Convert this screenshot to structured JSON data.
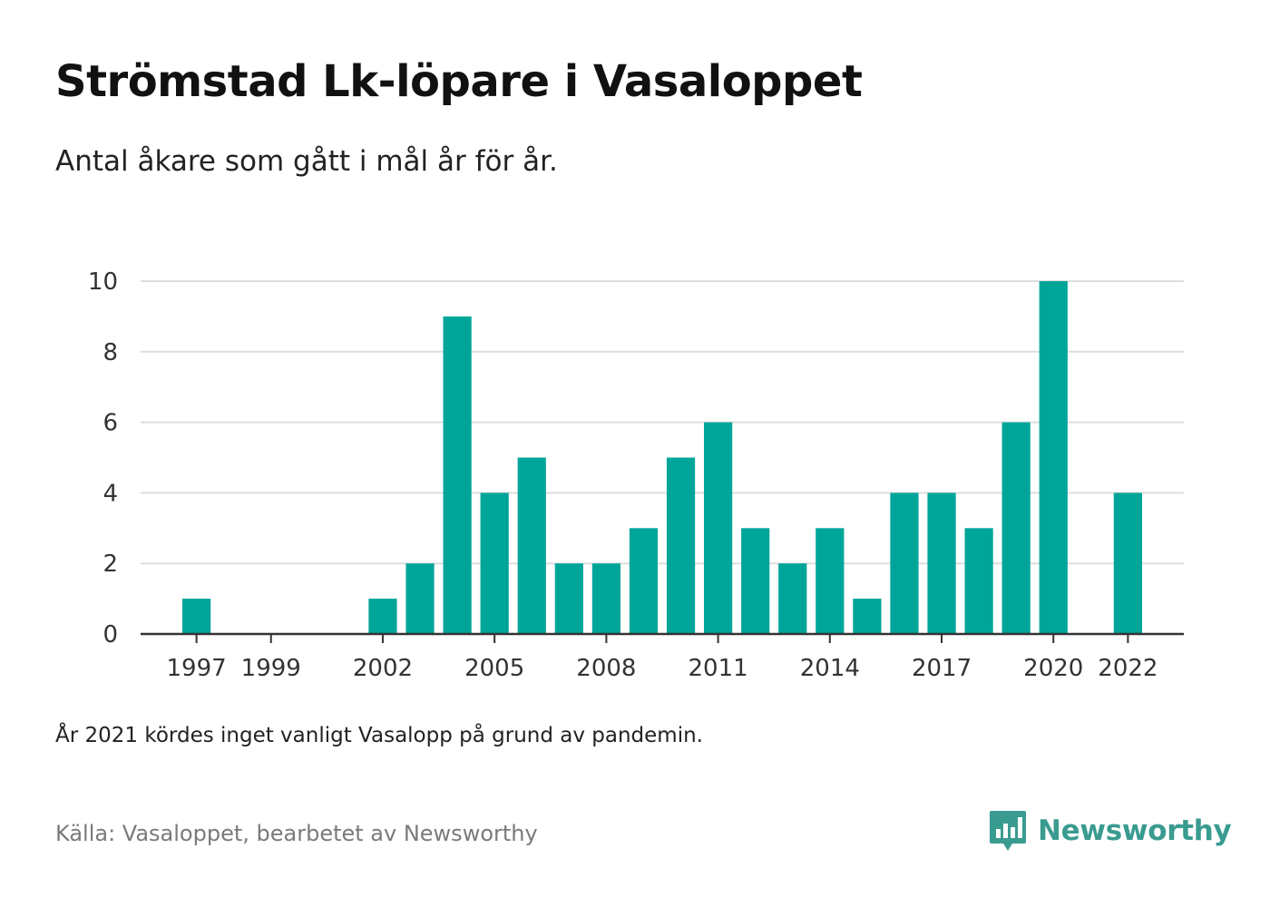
{
  "header": {
    "title": "Strömstad Lk-löpare i Vasaloppet",
    "subtitle": "Antal åkare som gått i mål år för år."
  },
  "footer": {
    "note": "År 2021 kördes inget vanligt Vasalopp på grund av pandemin.",
    "source": "Källa: Vasaloppet, bearbetet av Newsworthy",
    "logo_text": "Newsworthy"
  },
  "colors": {
    "bar": "#00a59a",
    "grid": "#dddddd",
    "axis": "#333333",
    "logo": "#3a9b90"
  },
  "icons": {
    "logo": "bar-chart-speech-bubble-icon"
  },
  "chart_data": {
    "type": "bar",
    "title": "Strömstad Lk-löpare i Vasaloppet",
    "subtitle": "Antal åkare som gått i mål år för år.",
    "xlabel": "",
    "ylabel": "",
    "categories": [
      "1996",
      "1997",
      "1998",
      "1999",
      "2000",
      "2001",
      "2002",
      "2003",
      "2004",
      "2005",
      "2006",
      "2007",
      "2008",
      "2009",
      "2010",
      "2011",
      "2012",
      "2013",
      "2014",
      "2015",
      "2016",
      "2017",
      "2018",
      "2019",
      "2020",
      "2021",
      "2022",
      "2023"
    ],
    "values": [
      null,
      1,
      0,
      0,
      0,
      0,
      1,
      2,
      9,
      4,
      5,
      2,
      2,
      3,
      5,
      6,
      3,
      2,
      3,
      1,
      4,
      4,
      3,
      6,
      10,
      null,
      4,
      null
    ],
    "x_tick_labels": [
      "1997",
      "1999",
      "2002",
      "2005",
      "2008",
      "2011",
      "2014",
      "2017",
      "2020",
      "2022"
    ],
    "y_ticks": [
      0,
      2,
      4,
      6,
      8,
      10
    ],
    "ylim": [
      0,
      10
    ],
    "grid": true,
    "legend": "none"
  }
}
